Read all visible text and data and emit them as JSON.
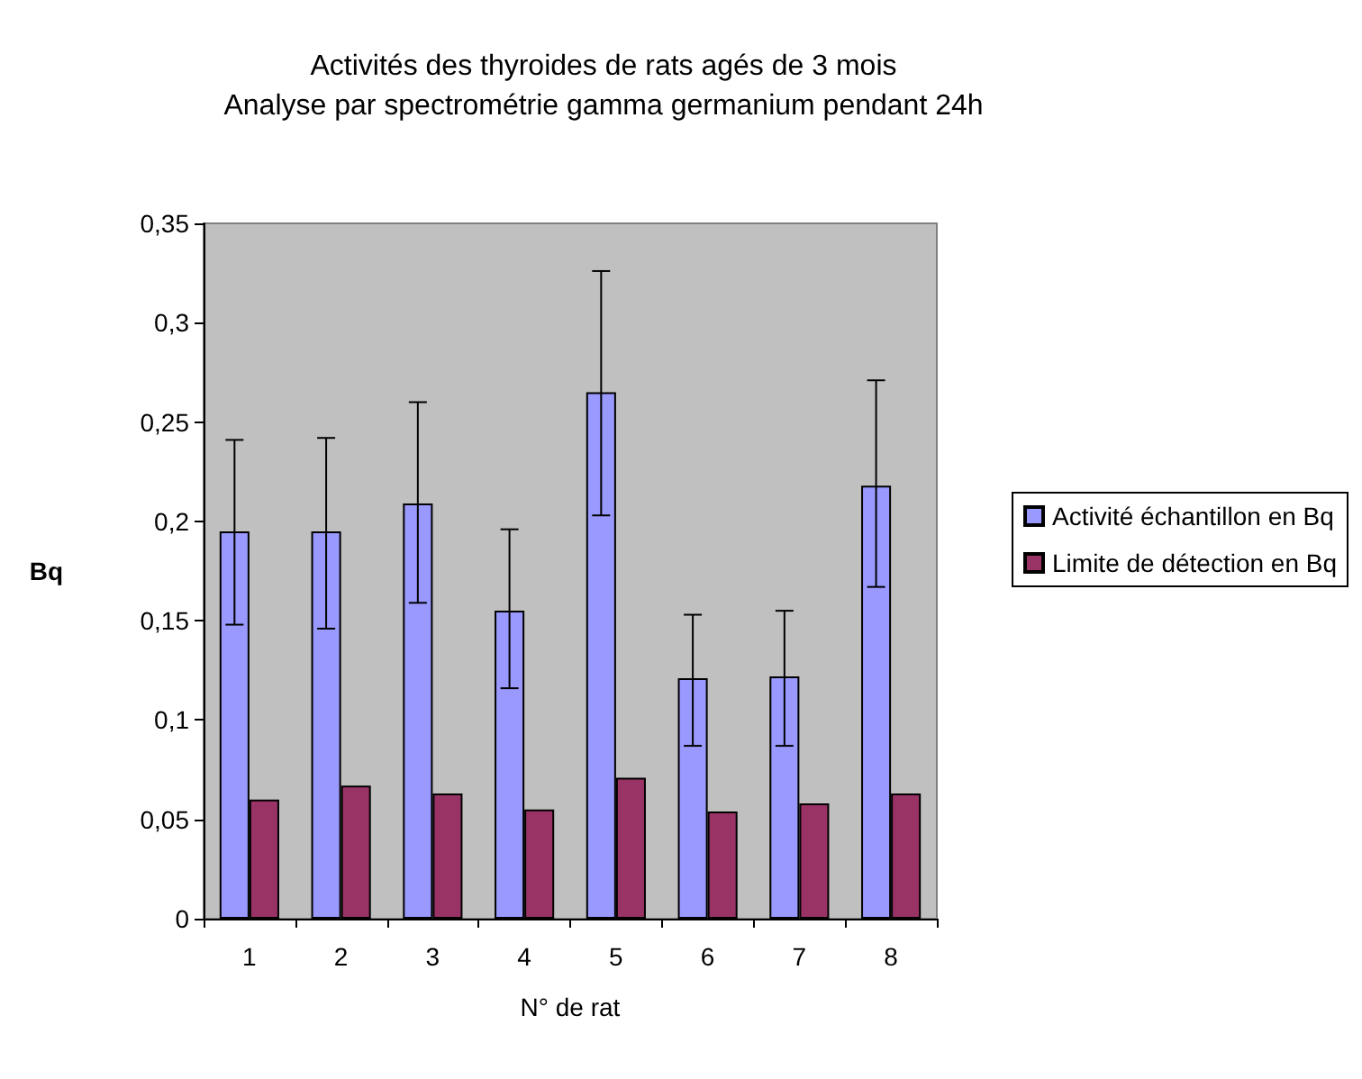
{
  "chart_data": {
    "type": "bar",
    "title": "Activités des thyroides de rats agés de 3 mois",
    "subtitle": "Analyse par spectrométrie gamma germanium pendant 24h",
    "xlabel": "N° de rat",
    "ylabel": "Bq",
    "categories": [
      "1",
      "2",
      "3",
      "4",
      "5",
      "6",
      "7",
      "8"
    ],
    "series": [
      {
        "name": "Activité échantillon en Bq",
        "color": "#9999ff",
        "values": [
          0.195,
          0.195,
          0.209,
          0.155,
          0.265,
          0.121,
          0.122,
          0.218
        ],
        "errors": [
          [
            0.148,
            0.241
          ],
          [
            0.146,
            0.242
          ],
          [
            0.159,
            0.26
          ],
          [
            0.116,
            0.196
          ],
          [
            0.203,
            0.326
          ],
          [
            0.087,
            0.153
          ],
          [
            0.087,
            0.155
          ],
          [
            0.167,
            0.271
          ]
        ]
      },
      {
        "name": "Limite de détection en Bq",
        "color": "#993366",
        "values": [
          0.06,
          0.067,
          0.063,
          0.055,
          0.071,
          0.054,
          0.058,
          0.063
        ]
      }
    ],
    "ylim": [
      0,
      0.35
    ],
    "yticks": [
      0,
      {
        "value": 0.05,
        "label": "0,05"
      },
      {
        "value": 0.1,
        "label": "0,1"
      },
      {
        "value": 0.15,
        "label": "0,15"
      },
      {
        "value": 0.2,
        "label": "0,2"
      },
      {
        "value": 0.25,
        "label": "0,25"
      },
      {
        "value": 0.3,
        "label": "0,3"
      },
      {
        "value": 0.35,
        "label": "0,35"
      }
    ],
    "grid": false,
    "legend": "right"
  }
}
